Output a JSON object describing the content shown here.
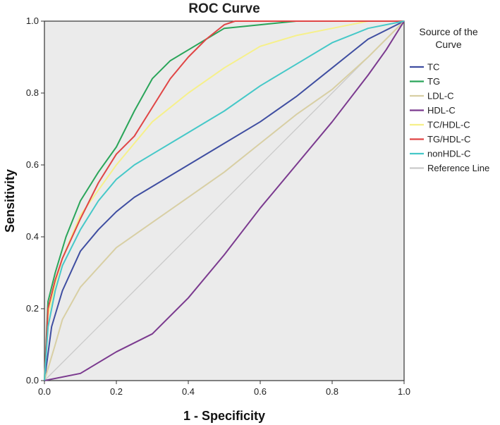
{
  "chart_data": {
    "type": "line",
    "title": "ROC Curve",
    "xlabel": "1 - Specificity",
    "ylabel": "Sensitivity",
    "xlim": [
      0,
      1
    ],
    "ylim": [
      0,
      1
    ],
    "xticks": [
      "0.0",
      "0.2",
      "0.4",
      "0.6",
      "0.8",
      "1.0"
    ],
    "yticks": [
      "0.0",
      "0.2",
      "0.4",
      "0.6",
      "0.8",
      "1.0"
    ],
    "grid": false,
    "background": "#ebebeb",
    "legend": {
      "title_line1": "Source of the",
      "title_line2": "Curve",
      "placement": "right"
    },
    "series": [
      {
        "name": "TC",
        "color": "#3f4ea1",
        "x": [
          0,
          0.02,
          0.05,
          0.1,
          0.15,
          0.2,
          0.25,
          0.3,
          0.4,
          0.5,
          0.6,
          0.7,
          0.8,
          0.9,
          1.0
        ],
        "y": [
          0,
          0.15,
          0.25,
          0.36,
          0.42,
          0.47,
          0.51,
          0.54,
          0.6,
          0.66,
          0.72,
          0.79,
          0.87,
          0.95,
          1.0
        ]
      },
      {
        "name": "TG",
        "color": "#2aa55a",
        "x": [
          0,
          0.01,
          0.03,
          0.06,
          0.1,
          0.15,
          0.2,
          0.25,
          0.3,
          0.35,
          0.4,
          0.45,
          0.5,
          0.6,
          0.7,
          0.8,
          1.0
        ],
        "y": [
          0,
          0.22,
          0.3,
          0.4,
          0.5,
          0.58,
          0.65,
          0.75,
          0.84,
          0.89,
          0.92,
          0.95,
          0.98,
          0.99,
          1.0,
          1.0,
          1.0
        ]
      },
      {
        "name": "LDL-C",
        "color": "#d8cfa4",
        "x": [
          0,
          0.03,
          0.05,
          0.1,
          0.2,
          0.3,
          0.4,
          0.5,
          0.6,
          0.7,
          0.8,
          0.9,
          1.0
        ],
        "y": [
          0,
          0.1,
          0.17,
          0.26,
          0.37,
          0.44,
          0.51,
          0.58,
          0.66,
          0.74,
          0.81,
          0.9,
          1.0
        ]
      },
      {
        "name": "HDL-C",
        "color": "#7b3a8f",
        "x": [
          0,
          0.1,
          0.2,
          0.3,
          0.4,
          0.5,
          0.6,
          0.7,
          0.8,
          0.9,
          0.95,
          1.0
        ],
        "y": [
          0,
          0.02,
          0.08,
          0.13,
          0.23,
          0.35,
          0.48,
          0.6,
          0.72,
          0.85,
          0.92,
          1.0
        ]
      },
      {
        "name": "TC/HDL-C",
        "color": "#f6f08a",
        "x": [
          0,
          0.01,
          0.03,
          0.05,
          0.1,
          0.15,
          0.2,
          0.25,
          0.3,
          0.4,
          0.5,
          0.6,
          0.7,
          0.8,
          0.9,
          1.0
        ],
        "y": [
          0,
          0.18,
          0.27,
          0.34,
          0.46,
          0.53,
          0.6,
          0.66,
          0.72,
          0.8,
          0.87,
          0.93,
          0.96,
          0.98,
          1.0,
          1.0
        ]
      },
      {
        "name": "TG/HDL-C",
        "color": "#e04545",
        "x": [
          0,
          0.01,
          0.03,
          0.05,
          0.1,
          0.15,
          0.2,
          0.25,
          0.3,
          0.35,
          0.4,
          0.45,
          0.5,
          0.53,
          0.6,
          1.0
        ],
        "y": [
          0,
          0.2,
          0.28,
          0.34,
          0.45,
          0.55,
          0.63,
          0.68,
          0.76,
          0.84,
          0.9,
          0.95,
          0.99,
          1.0,
          1.0,
          1.0
        ]
      },
      {
        "name": "nonHDL-C",
        "color": "#45c8c8",
        "x": [
          0,
          0.01,
          0.03,
          0.05,
          0.1,
          0.15,
          0.2,
          0.25,
          0.3,
          0.4,
          0.5,
          0.6,
          0.7,
          0.8,
          0.9,
          1.0
        ],
        "y": [
          0,
          0.15,
          0.25,
          0.32,
          0.42,
          0.5,
          0.56,
          0.6,
          0.63,
          0.69,
          0.75,
          0.82,
          0.88,
          0.94,
          0.98,
          1.0
        ]
      },
      {
        "name": "Reference Line",
        "color": "#c9c9c9",
        "x": [
          0,
          1
        ],
        "y": [
          0,
          1
        ]
      }
    ]
  }
}
